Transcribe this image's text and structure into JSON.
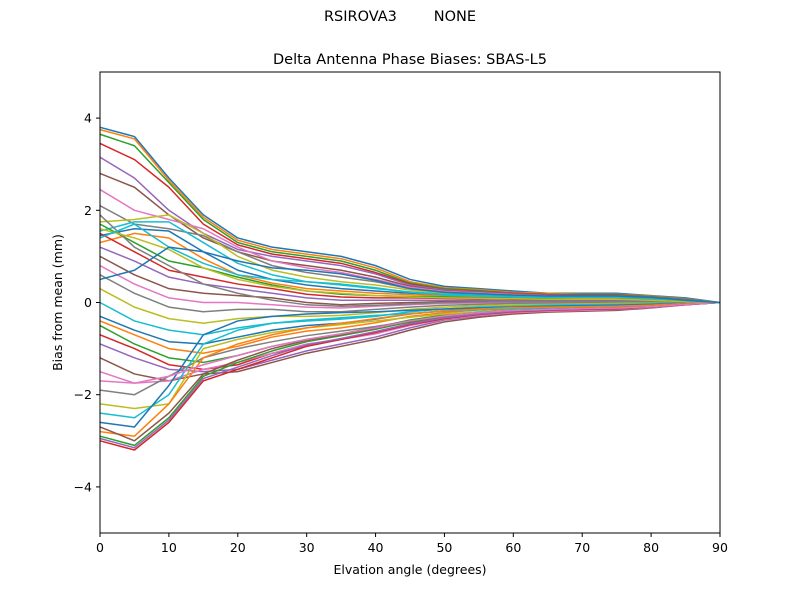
{
  "header": {
    "station": "RSIROVA3",
    "antenna": "NONE"
  },
  "chart_data": {
    "type": "line",
    "title": "Delta Antenna Phase Biases: SBAS-L5",
    "xlabel": "Elvation angle (degrees)",
    "ylabel": "Bias from mean (mm)",
    "xlim": [
      0,
      90
    ],
    "ylim": [
      -5,
      5
    ],
    "xticks": [
      0,
      10,
      20,
      30,
      40,
      50,
      60,
      70,
      80,
      90
    ],
    "yticks": [
      -4,
      -2,
      0,
      2,
      4
    ],
    "ytick_labels": [
      "−4",
      "−2",
      "0",
      "2",
      "4"
    ],
    "grid": false,
    "legend": "none",
    "x": [
      0,
      5,
      10,
      15,
      20,
      25,
      30,
      35,
      40,
      45,
      50,
      55,
      60,
      65,
      70,
      75,
      80,
      85,
      90
    ],
    "colors": [
      "#1f77b4",
      "#ff7f0e",
      "#2ca02c",
      "#d62728",
      "#9467bd",
      "#8c564b",
      "#e377c2",
      "#7f7f7f",
      "#bcbd22",
      "#17becf"
    ],
    "series": [
      {
        "values": [
          3.8,
          3.6,
          2.7,
          1.9,
          1.4,
          1.2,
          1.1,
          1.0,
          0.8,
          0.5,
          0.35,
          0.3,
          0.25,
          0.2,
          0.2,
          0.2,
          0.15,
          0.1,
          0.0
        ]
      },
      {
        "values": [
          3.75,
          3.55,
          2.65,
          1.85,
          1.35,
          1.15,
          1.05,
          0.95,
          0.75,
          0.45,
          0.32,
          0.28,
          0.22,
          0.2,
          0.18,
          0.18,
          0.14,
          0.08,
          0.0
        ]
      },
      {
        "values": [
          3.65,
          3.4,
          2.6,
          1.8,
          1.3,
          1.1,
          1.0,
          0.9,
          0.7,
          0.42,
          0.3,
          0.26,
          0.2,
          0.18,
          0.17,
          0.17,
          0.13,
          0.07,
          0.0
        ]
      },
      {
        "values": [
          3.45,
          3.1,
          2.5,
          1.7,
          1.25,
          1.05,
          0.95,
          0.85,
          0.65,
          0.4,
          0.28,
          0.24,
          0.2,
          0.17,
          0.16,
          0.16,
          0.12,
          0.06,
          0.0
        ]
      },
      {
        "values": [
          3.15,
          2.7,
          2.0,
          1.5,
          1.15,
          1.0,
          0.9,
          0.8,
          0.62,
          0.38,
          0.27,
          0.23,
          0.19,
          0.16,
          0.15,
          0.15,
          0.12,
          0.06,
          0.0
        ]
      },
      {
        "values": [
          2.8,
          2.5,
          1.9,
          1.4,
          1.1,
          0.9,
          0.8,
          0.7,
          0.55,
          0.35,
          0.25,
          0.22,
          0.18,
          0.15,
          0.14,
          0.14,
          0.11,
          0.05,
          0.0
        ]
      },
      {
        "values": [
          2.45,
          2.0,
          1.8,
          1.6,
          1.2,
          0.9,
          0.75,
          0.65,
          0.5,
          0.33,
          0.24,
          0.21,
          0.17,
          0.14,
          0.13,
          0.13,
          0.1,
          0.05,
          0.0
        ]
      },
      {
        "values": [
          2.1,
          1.7,
          1.6,
          1.45,
          1.1,
          0.8,
          0.65,
          0.55,
          0.45,
          0.3,
          0.22,
          0.19,
          0.16,
          0.13,
          0.12,
          0.12,
          0.1,
          0.05,
          0.0
        ]
      },
      {
        "values": [
          1.75,
          1.8,
          1.9,
          1.5,
          1.0,
          0.7,
          0.55,
          0.45,
          0.38,
          0.27,
          0.2,
          0.18,
          0.15,
          0.12,
          0.11,
          0.11,
          0.09,
          0.04,
          0.0
        ]
      },
      {
        "values": [
          1.55,
          1.75,
          1.75,
          1.3,
          0.85,
          0.6,
          0.45,
          0.38,
          0.3,
          0.23,
          0.18,
          0.16,
          0.13,
          0.11,
          0.1,
          0.1,
          0.08,
          0.04,
          0.0
        ]
      },
      {
        "values": [
          1.45,
          1.6,
          1.55,
          1.1,
          0.7,
          0.5,
          0.38,
          0.3,
          0.25,
          0.2,
          0.16,
          0.14,
          0.12,
          0.1,
          0.09,
          0.09,
          0.07,
          0.03,
          0.0
        ]
      },
      {
        "values": [
          1.3,
          1.5,
          1.4,
          0.95,
          0.6,
          0.42,
          0.3,
          0.25,
          0.2,
          0.17,
          0.14,
          0.12,
          0.1,
          0.09,
          0.08,
          0.08,
          0.06,
          0.03,
          0.0
        ]
      },
      {
        "values": [
          1.7,
          1.3,
          0.9,
          0.75,
          0.55,
          0.38,
          0.25,
          0.18,
          0.15,
          0.13,
          0.12,
          0.1,
          0.09,
          0.08,
          0.07,
          0.07,
          0.06,
          0.03,
          0.0
        ]
      },
      {
        "values": [
          1.5,
          1.1,
          0.7,
          0.55,
          0.4,
          0.3,
          0.18,
          0.12,
          0.1,
          0.1,
          0.09,
          0.08,
          0.07,
          0.06,
          0.06,
          0.06,
          0.05,
          0.02,
          0.0
        ]
      },
      {
        "values": [
          1.2,
          0.9,
          0.55,
          0.4,
          0.3,
          0.2,
          0.1,
          0.05,
          0.05,
          0.05,
          0.05,
          0.05,
          0.04,
          0.04,
          0.04,
          0.04,
          0.03,
          0.02,
          0.0
        ]
      },
      {
        "values": [
          1.0,
          0.6,
          0.3,
          0.2,
          0.15,
          0.1,
          0.0,
          -0.05,
          -0.02,
          0.0,
          0.02,
          0.02,
          0.02,
          0.02,
          0.02,
          0.02,
          0.02,
          0.01,
          0.0
        ]
      },
      {
        "values": [
          0.8,
          0.4,
          0.1,
          0.0,
          0.0,
          -0.05,
          -0.1,
          -0.12,
          -0.08,
          -0.05,
          -0.02,
          -0.01,
          0.0,
          0.0,
          0.0,
          0.01,
          0.01,
          0.0,
          0.0
        ]
      },
      {
        "values": [
          0.6,
          0.2,
          -0.1,
          -0.2,
          -0.15,
          -0.15,
          -0.2,
          -0.2,
          -0.15,
          -0.1,
          -0.06,
          -0.04,
          -0.02,
          -0.02,
          -0.01,
          0.0,
          0.0,
          0.0,
          0.0
        ]
      },
      {
        "values": [
          0.3,
          -0.1,
          -0.35,
          -0.45,
          -0.35,
          -0.3,
          -0.3,
          -0.28,
          -0.22,
          -0.15,
          -0.1,
          -0.07,
          -0.05,
          -0.04,
          -0.03,
          -0.02,
          -0.01,
          0.0,
          0.0
        ]
      },
      {
        "values": [
          0.0,
          -0.4,
          -0.6,
          -0.7,
          -0.55,
          -0.45,
          -0.4,
          -0.36,
          -0.3,
          -0.2,
          -0.14,
          -0.1,
          -0.08,
          -0.06,
          -0.05,
          -0.04,
          -0.03,
          -0.01,
          0.0
        ]
      },
      {
        "values": [
          -0.3,
          -0.6,
          -0.85,
          -0.9,
          -0.75,
          -0.6,
          -0.5,
          -0.45,
          -0.36,
          -0.25,
          -0.18,
          -0.13,
          -0.1,
          -0.08,
          -0.07,
          -0.06,
          -0.04,
          -0.02,
          0.0
        ]
      },
      {
        "values": [
          -0.4,
          -0.7,
          -1.0,
          -1.1,
          -0.95,
          -0.75,
          -0.62,
          -0.55,
          -0.44,
          -0.3,
          -0.22,
          -0.16,
          -0.12,
          -0.1,
          -0.09,
          -0.08,
          -0.06,
          -0.02,
          0.0
        ]
      },
      {
        "values": [
          -0.5,
          -0.9,
          -1.2,
          -1.3,
          -1.15,
          -0.95,
          -0.8,
          -0.68,
          -0.54,
          -0.38,
          -0.27,
          -0.2,
          -0.15,
          -0.13,
          -0.11,
          -0.1,
          -0.07,
          -0.03,
          0.0
        ]
      },
      {
        "values": [
          -0.7,
          -1.0,
          -1.35,
          -1.45,
          -1.35,
          -1.1,
          -0.95,
          -0.8,
          -0.65,
          -0.45,
          -0.32,
          -0.24,
          -0.18,
          -0.16,
          -0.14,
          -0.12,
          -0.09,
          -0.04,
          0.0
        ]
      },
      {
        "values": [
          -0.9,
          -1.2,
          -1.45,
          -1.5,
          -1.45,
          -1.25,
          -1.05,
          -0.9,
          -0.75,
          -0.55,
          -0.38,
          -0.29,
          -0.22,
          -0.19,
          -0.17,
          -0.15,
          -0.1,
          -0.05,
          0.0
        ]
      },
      {
        "values": [
          -1.2,
          -1.55,
          -1.7,
          -1.55,
          -1.5,
          -1.3,
          -1.1,
          -0.95,
          -0.8,
          -0.6,
          -0.42,
          -0.32,
          -0.25,
          -0.21,
          -0.19,
          -0.17,
          -0.12,
          -0.05,
          0.0
        ]
      },
      {
        "values": [
          -1.5,
          -1.75,
          -1.7,
          -1.45,
          -1.3,
          -1.1,
          -0.9,
          -0.8,
          -0.68,
          -0.5,
          -0.36,
          -0.28,
          -0.22,
          -0.19,
          -0.17,
          -0.15,
          -0.11,
          -0.05,
          0.0
        ]
      },
      {
        "values": [
          -1.9,
          -2.0,
          -1.6,
          -1.2,
          -1.0,
          -0.85,
          -0.72,
          -0.62,
          -0.52,
          -0.4,
          -0.3,
          -0.24,
          -0.19,
          -0.16,
          -0.15,
          -0.13,
          -0.1,
          -0.04,
          0.0
        ]
      },
      {
        "values": [
          -2.2,
          -2.3,
          -2.2,
          -1.0,
          -0.8,
          -0.65,
          -0.55,
          -0.48,
          -0.4,
          -0.32,
          -0.25,
          -0.2,
          -0.16,
          -0.14,
          -0.13,
          -0.12,
          -0.09,
          -0.04,
          0.0
        ]
      },
      {
        "values": [
          -2.4,
          -2.5,
          -2.0,
          -0.9,
          -0.6,
          -0.45,
          -0.38,
          -0.33,
          -0.28,
          -0.24,
          -0.19,
          -0.16,
          -0.13,
          -0.12,
          -0.11,
          -0.1,
          -0.08,
          -0.03,
          0.0
        ]
      },
      {
        "values": [
          -2.6,
          -2.7,
          -1.8,
          -0.7,
          -0.4,
          -0.3,
          -0.25,
          -0.22,
          -0.2,
          -0.17,
          -0.14,
          -0.12,
          -0.1,
          -0.09,
          -0.08,
          -0.08,
          -0.06,
          -0.03,
          0.0
        ]
      },
      {
        "values": [
          -2.8,
          -2.9,
          -2.2,
          -1.2,
          -0.9,
          -0.7,
          -0.55,
          -0.45,
          -0.35,
          -0.25,
          -0.18,
          -0.14,
          -0.11,
          -0.1,
          -0.09,
          -0.08,
          -0.06,
          -0.03,
          0.0
        ]
      },
      {
        "values": [
          -2.9,
          -3.1,
          -2.5,
          -1.6,
          -1.3,
          -1.05,
          -0.85,
          -0.72,
          -0.58,
          -0.42,
          -0.3,
          -0.22,
          -0.17,
          -0.15,
          -0.13,
          -0.12,
          -0.09,
          -0.04,
          0.0
        ]
      },
      {
        "values": [
          -3.0,
          -3.2,
          -2.6,
          -1.7,
          -1.45,
          -1.2,
          -0.95,
          -0.8,
          -0.65,
          -0.48,
          -0.35,
          -0.26,
          -0.2,
          -0.17,
          -0.15,
          -0.14,
          -0.1,
          -0.05,
          0.0
        ]
      },
      {
        "values": [
          -2.95,
          -3.15,
          -2.55,
          -1.65,
          -1.4,
          -1.15,
          -0.92,
          -0.78,
          -0.63,
          -0.46,
          -0.33,
          -0.25,
          -0.19,
          -0.16,
          -0.14,
          -0.13,
          -0.1,
          -0.04,
          0.0
        ]
      },
      {
        "values": [
          -2.7,
          -3.0,
          -2.4,
          -1.55,
          -1.25,
          -1.0,
          -0.82,
          -0.7,
          -0.56,
          -0.4,
          -0.29,
          -0.22,
          -0.17,
          -0.15,
          -0.13,
          -0.12,
          -0.09,
          -0.04,
          0.0
        ]
      },
      {
        "values": [
          -1.7,
          -1.75,
          -1.6,
          -1.35,
          -1.15,
          -0.95,
          -0.8,
          -0.68,
          -0.55,
          -0.4,
          -0.29,
          -0.22,
          -0.17,
          -0.15,
          -0.13,
          -0.12,
          -0.09,
          -0.04,
          0.0
        ]
      },
      {
        "values": [
          1.9,
          1.2,
          0.8,
          0.4,
          0.2,
          0.05,
          -0.05,
          -0.08,
          -0.06,
          -0.03,
          0.0,
          0.01,
          0.02,
          0.02,
          0.02,
          0.02,
          0.02,
          0.01,
          0.0
        ]
      },
      {
        "values": [
          1.6,
          1.4,
          1.15,
          0.75,
          0.5,
          0.35,
          0.25,
          0.2,
          0.15,
          0.12,
          0.1,
          0.09,
          0.08,
          0.07,
          0.07,
          0.07,
          0.05,
          0.02,
          0.0
        ]
      },
      {
        "values": [
          1.4,
          1.7,
          1.2,
          0.85,
          0.6,
          0.5,
          0.45,
          0.4,
          0.32,
          0.22,
          0.16,
          0.14,
          0.12,
          0.11,
          0.11,
          0.11,
          0.09,
          0.04,
          0.0
        ]
      },
      {
        "values": [
          0.5,
          0.7,
          1.2,
          1.1,
          0.9,
          0.75,
          0.7,
          0.62,
          0.48,
          0.3,
          0.22,
          0.19,
          0.16,
          0.14,
          0.14,
          0.14,
          0.11,
          0.05,
          0.0
        ]
      }
    ]
  }
}
